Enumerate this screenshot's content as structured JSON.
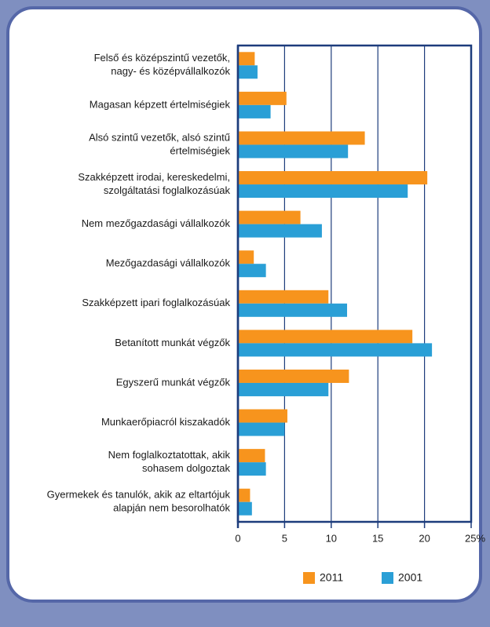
{
  "chart_data": {
    "type": "bar",
    "orientation": "horizontal",
    "categories": [
      [
        "Felső és középszintű vezetők,",
        "nagy- és középvállalkozók"
      ],
      [
        "Magasan képzett értelmiségiek"
      ],
      [
        "Alsó szintű vezetők, alsó szintű",
        "értelmiségiek"
      ],
      [
        "Szakképzett irodai, kereskedelmi,",
        "szolgáltatási foglalkozásúak"
      ],
      [
        "Nem mezőgazdasági vállalkozók"
      ],
      [
        "Mezőgazdasági vállalkozók"
      ],
      [
        "Szakképzett ipari foglalkozásúak"
      ],
      [
        "Betanított munkát végzők"
      ],
      [
        "Egyszerű munkát végzők"
      ],
      [
        "Munkaerőpiacról kiszakadók"
      ],
      [
        "Nem foglalkoztatottak, akik",
        "sohasem dolgoztak"
      ],
      [
        "Gyermekek és tanulók, akik az eltartójuk",
        "alapján nem besorolhatók"
      ]
    ],
    "series": [
      {
        "name": "2011",
        "color": "#f7941d",
        "values": [
          1.8,
          5.2,
          13.6,
          20.3,
          6.7,
          1.7,
          9.7,
          18.7,
          11.9,
          5.3,
          2.9,
          1.3
        ]
      },
      {
        "name": "2001",
        "color": "#2a9fd6",
        "values": [
          2.1,
          3.5,
          11.8,
          18.2,
          9.0,
          3.0,
          11.7,
          20.8,
          9.7,
          5.0,
          3.0,
          1.5
        ]
      }
    ],
    "xlim": [
      0,
      25
    ],
    "xticks": [
      0,
      5,
      10,
      15,
      20,
      {
        "value": 25,
        "label": "25%"
      }
    ],
    "grid": true
  }
}
